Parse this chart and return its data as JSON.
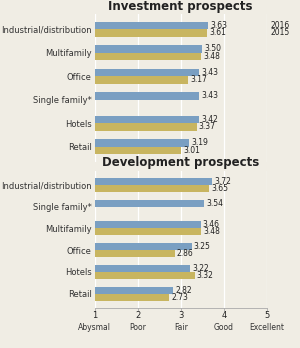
{
  "investment": {
    "categories": [
      "Industrial/distribution",
      "Multifamily",
      "Office",
      "Single family*",
      "Hotels",
      "Retail"
    ],
    "values_2016": [
      3.63,
      3.5,
      3.43,
      3.43,
      3.42,
      3.19
    ],
    "values_2015": [
      3.61,
      3.48,
      3.17,
      null,
      3.37,
      3.01
    ],
    "title": "Investment prospects"
  },
  "development": {
    "categories": [
      "Industrial/distribution",
      "Single family*",
      "Multifamily",
      "Office",
      "Hotels",
      "Retail"
    ],
    "values_2016": [
      3.72,
      3.54,
      3.46,
      3.25,
      3.22,
      2.82
    ],
    "values_2015": [
      3.65,
      null,
      3.48,
      2.86,
      3.32,
      2.73
    ],
    "title": "Development prospects"
  },
  "color_2016": "#7a9fc2",
  "color_2015": "#c8b560",
  "xlim": [
    1,
    5
  ],
  "xticks": [
    1,
    2,
    3,
    4,
    5
  ],
  "xticklabels_num": [
    "1",
    "2",
    "3",
    "4",
    "5"
  ],
  "xticklabels_word": [
    "Abysmal",
    "Poor",
    "Fair",
    "Good",
    "Excellent"
  ],
  "bar_height": 0.32,
  "label_fontsize": 6.0,
  "title_fontsize": 8.5,
  "value_fontsize": 5.5,
  "tick_fontsize": 6.0,
  "bg_color": "#f0ede4",
  "legend_2016": "2016",
  "legend_2015": "2015"
}
